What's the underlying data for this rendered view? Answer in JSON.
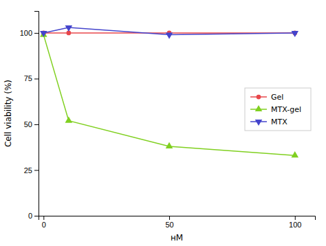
{
  "chart_data": {
    "type": "line",
    "x": [
      0,
      10,
      50,
      100
    ],
    "series": [
      {
        "name": "Gel",
        "color": "#e8464a",
        "marker": "circle",
        "line_style": "solid",
        "values": [
          100,
          100,
          100,
          100
        ]
      },
      {
        "name": "MTX-gel",
        "color": "#80d020",
        "marker": "triangle-up",
        "line_style": "solid",
        "values": [
          99,
          52,
          38,
          33
        ]
      },
      {
        "name": "MTX",
        "color": "#4444cc",
        "marker": "triangle-down",
        "line_style": "solid",
        "values": [
          100,
          103,
          99,
          100
        ]
      }
    ],
    "xlabel": "нM",
    "ylabel": "Cell viability (%)",
    "xlim": [
      -2,
      108
    ],
    "ylim": [
      0,
      112
    ],
    "xticks": [
      0,
      50,
      100
    ],
    "yticks": [
      0,
      25,
      50,
      75,
      100
    ],
    "grid": false,
    "legend": "right"
  }
}
